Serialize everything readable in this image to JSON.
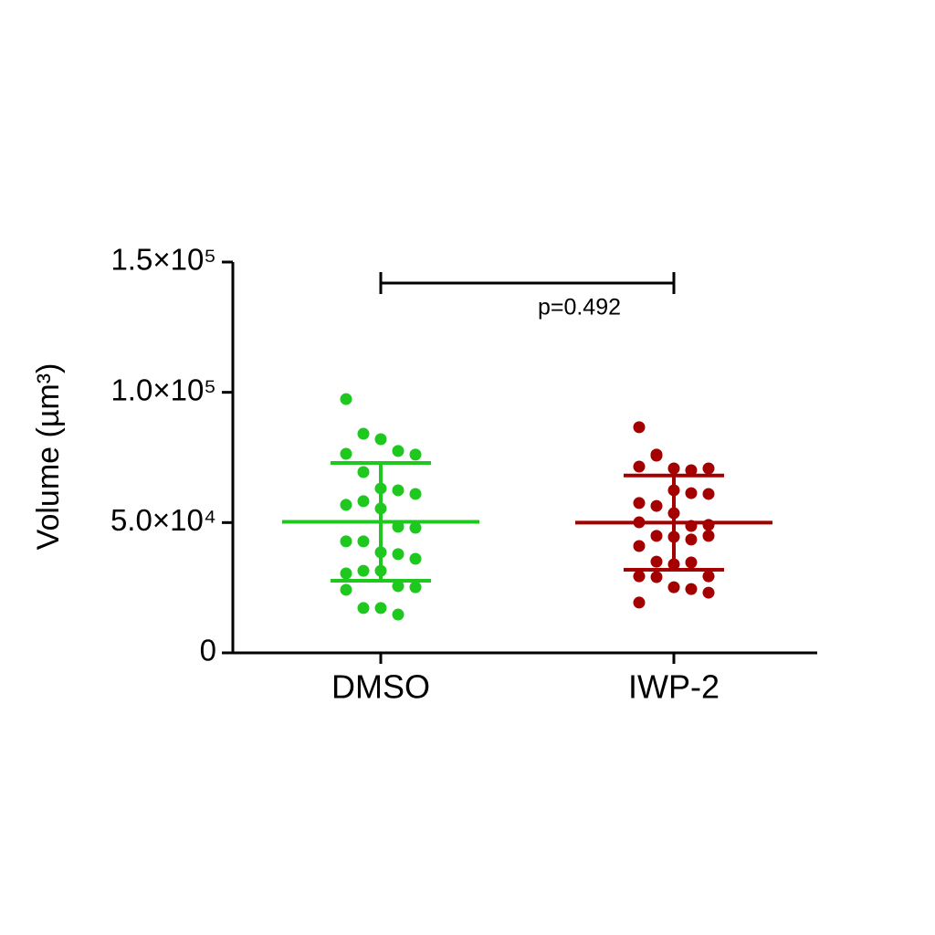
{
  "chart_data": {
    "type": "dot_plot",
    "ylabel": "Volume (µm³)",
    "ylim": [
      0,
      150000
    ],
    "yticks": [
      0,
      {
        "value": 50000,
        "label": "5.0×10⁴"
      },
      {
        "value": 100000,
        "label": "1.0×10⁵"
      },
      {
        "value": 150000,
        "label": "1.5×10⁵"
      }
    ],
    "groups": [
      {
        "name": "DMSO",
        "color": "#1ec81e",
        "mean": 50300,
        "sd": 22600,
        "values": [
          97400,
          84100,
          82000,
          77500,
          76100,
          76400,
          69400,
          63100,
          62400,
          61000,
          56800,
          58200,
          55400,
          48400,
          48000,
          42800,
          42800,
          38600,
          37900,
          36100,
          30500,
          31500,
          31500,
          25600,
          25200,
          24200,
          17200,
          17200,
          14700
        ]
      },
      {
        "name": "IWP-2",
        "color": "#a50000",
        "mean": 50000,
        "sd": 18100,
        "values": [
          86600,
          75700,
          70800,
          70100,
          70800,
          71500,
          76100,
          62400,
          61300,
          61000,
          57500,
          56400,
          53600,
          48700,
          49100,
          50100,
          44900,
          44500,
          43500,
          44900,
          41000,
          35000,
          34000,
          34700,
          29400,
          29400,
          29100,
          25200,
          24500,
          23100,
          19300
        ]
      }
    ],
    "annotation": {
      "text": "p=0.492",
      "from": 0,
      "to": 1
    }
  }
}
